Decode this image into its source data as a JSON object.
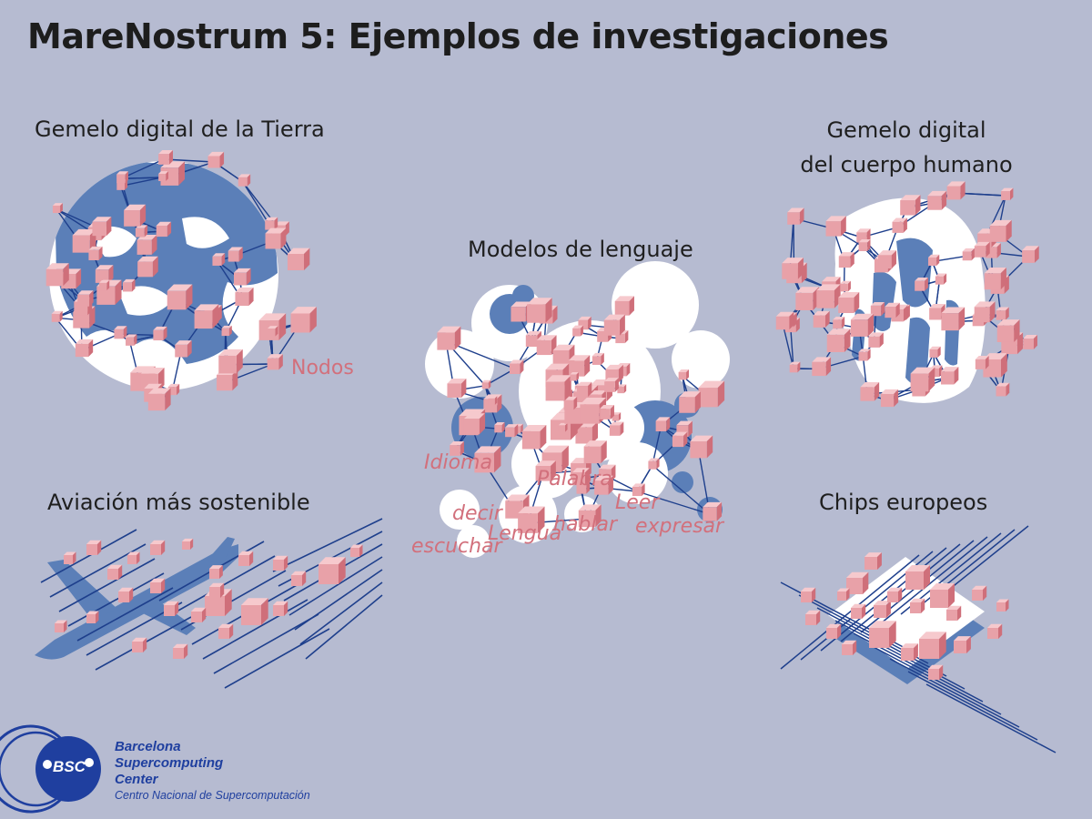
{
  "title": "MareNostrum 5: Ejemplos de investigaciones",
  "sections": {
    "earth": {
      "label": "Gemelo digital de la Tierra",
      "annotation": "Nodos"
    },
    "body": {
      "label_line1": "Gemelo digital",
      "label_line2": "del cuerpo humano"
    },
    "language": {
      "label": "Modelos de lenguaje",
      "words": [
        "Idioma",
        "Palabra",
        "decir",
        "Leer",
        "Lengua",
        "hablar",
        "expresar",
        "escuchar"
      ]
    },
    "aviation": {
      "label": "Aviación más sostenible"
    },
    "chips": {
      "label": "Chips europeos"
    }
  },
  "logo": {
    "abbr": "BSC",
    "name_line1": "Barcelona",
    "name_line2": "Supercomputing",
    "name_line3": "Center",
    "subtitle": "Centro Nacional de Supercomputación"
  },
  "colors": {
    "background": "#b6bbd1",
    "node_pink": "#e8a1a8",
    "link_blue": "#1e3f8c",
    "shape_blue": "#5b7fb8",
    "logo_blue": "#1f3f9f"
  }
}
